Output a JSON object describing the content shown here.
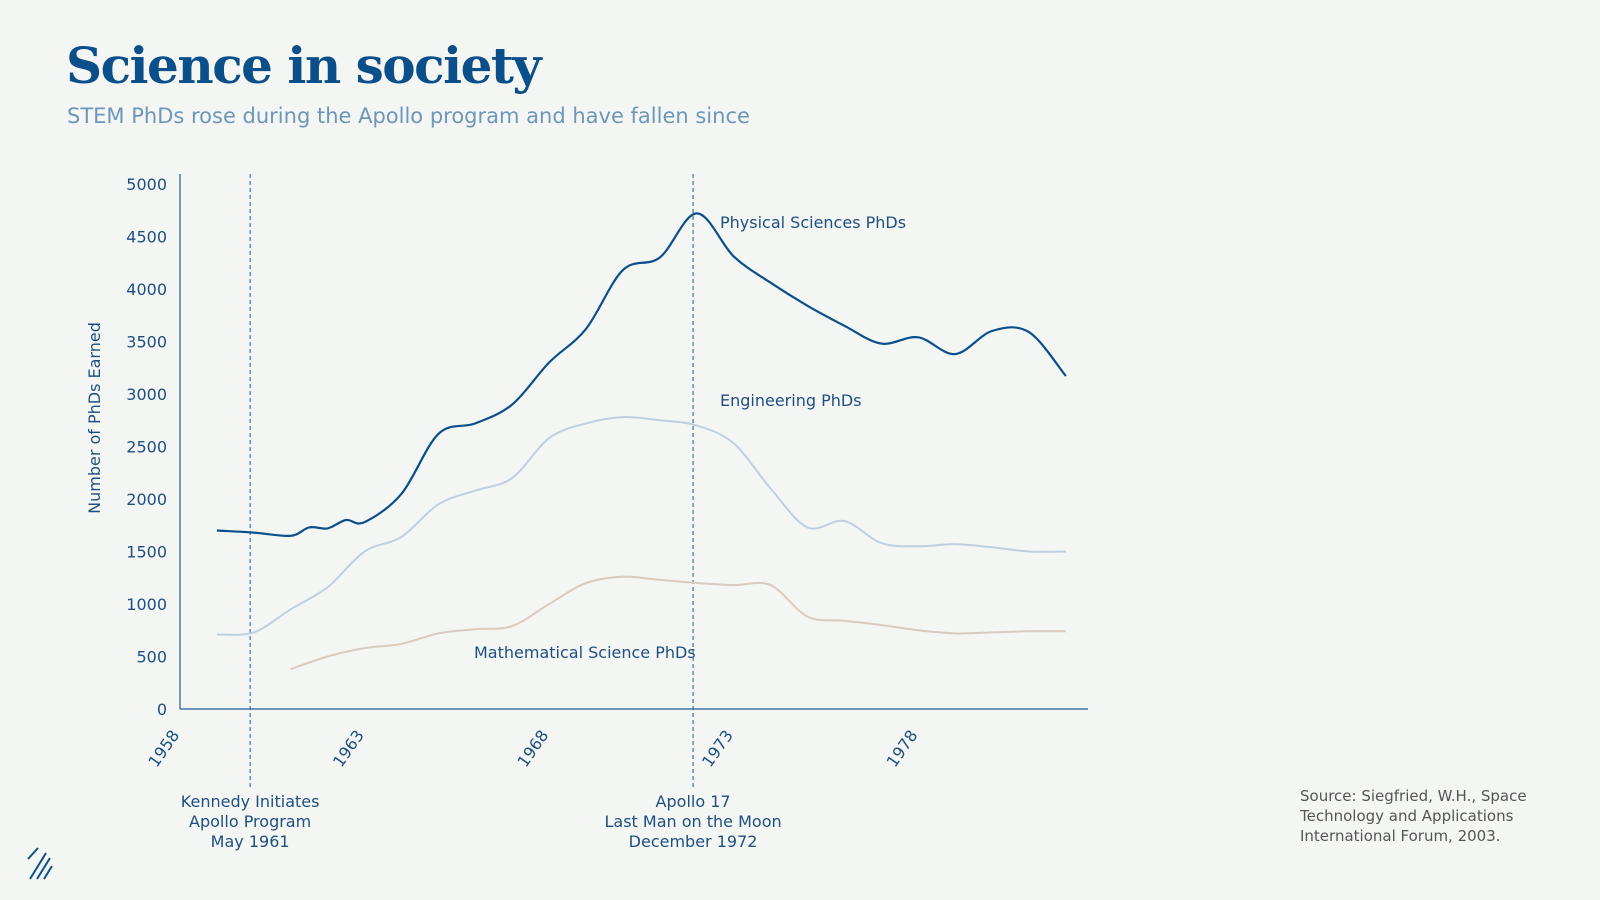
{
  "header": {
    "title": "Science in society",
    "subtitle": "STEM PhDs rose during the Apollo program and have fallen since"
  },
  "source": "Source: Siegfried, W.H., Space Technology and Applications International Forum, 2003.",
  "chart_data": {
    "type": "line",
    "title": "",
    "xlabel": "",
    "ylabel": "Number of PhDs Earned",
    "xlim": [
      1958,
      1982.6
    ],
    "ylim": [
      0,
      5000
    ],
    "xticks": [
      1958,
      1963,
      1968,
      1973,
      1978
    ],
    "yticks": [
      0,
      500,
      1000,
      1500,
      2000,
      2500,
      3000,
      3500,
      4000,
      4500,
      5000
    ],
    "grid": false,
    "series": [
      {
        "name": "Physical Sciences PhDs",
        "color": "#0b4f8a",
        "x": [
          1959,
          1960,
          1961,
          1961.5,
          1962,
          1962.5,
          1963,
          1964,
          1965,
          1966,
          1967,
          1968,
          1969,
          1970,
          1971,
          1972,
          1973,
          1974,
          1975,
          1976,
          1977,
          1978,
          1979,
          1980,
          1981,
          1982
        ],
        "values": [
          1700,
          1680,
          1650,
          1730,
          1720,
          1800,
          1780,
          2050,
          2620,
          2720,
          2900,
          3300,
          3620,
          4180,
          4300,
          4720,
          4310,
          4060,
          3840,
          3650,
          3480,
          3540,
          3380,
          3600,
          3590,
          3170
        ]
      },
      {
        "name": "Engineering PhDs",
        "color": "#bfcfdd",
        "x": [
          1959,
          1960,
          1961,
          1962,
          1963,
          1964,
          1965,
          1966,
          1967,
          1968,
          1969,
          1970,
          1971,
          1972,
          1973,
          1974,
          1975,
          1976,
          1977,
          1978,
          1979,
          1980,
          1981,
          1982
        ],
        "values": [
          710,
          730,
          950,
          1160,
          1500,
          1640,
          1950,
          2080,
          2200,
          2580,
          2720,
          2780,
          2750,
          2700,
          2530,
          2100,
          1730,
          1790,
          1580,
          1550,
          1570,
          1540,
          1500,
          1500
        ]
      },
      {
        "name": "Mathematical Science PhDs",
        "color": "#d9cbbe",
        "x": [
          1961,
          1962,
          1963,
          1964,
          1965,
          1966,
          1967,
          1968,
          1969,
          1970,
          1971,
          1972,
          1973,
          1974,
          1975,
          1976,
          1977,
          1978,
          1979,
          1980,
          1981,
          1982
        ],
        "values": [
          380,
          500,
          580,
          620,
          720,
          760,
          790,
          1000,
          1200,
          1260,
          1230,
          1200,
          1180,
          1180,
          880,
          840,
          800,
          750,
          720,
          730,
          740,
          740
        ]
      }
    ],
    "annotations": [
      {
        "x": 1959.9,
        "lines": [
          "Kennedy Initiates",
          "Apollo Program",
          "May 1961"
        ]
      },
      {
        "x": 1971.9,
        "lines": [
          "Apollo 17",
          "Last Man on the Moon",
          "December 1972"
        ]
      }
    ]
  }
}
